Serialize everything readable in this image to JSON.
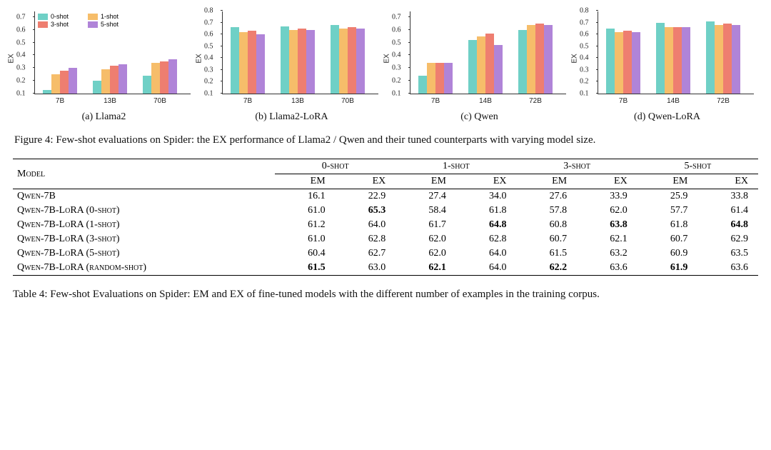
{
  "colors": {
    "shot0": "#6fd0c6",
    "shot1": "#f6bd6a",
    "shot3": "#ee7e70",
    "shot5": "#b084d8",
    "axis": "#333333",
    "bg": "#ffffff"
  },
  "legend": {
    "items": [
      {
        "label": "0-shot",
        "color_key": "shot0"
      },
      {
        "label": "1-shot",
        "color_key": "shot1"
      },
      {
        "label": "3-shot",
        "color_key": "shot3"
      },
      {
        "label": "5-shot",
        "color_key": "shot5"
      }
    ]
  },
  "charts": [
    {
      "id": "a",
      "subcaption": "(a) Llama2",
      "ylabel": "EX",
      "ylim": [
        0.1,
        0.75
      ],
      "yticks": [
        0.1,
        0.2,
        0.3,
        0.4,
        0.5,
        0.6,
        0.7
      ],
      "categories": [
        "7B",
        "13B",
        "70B"
      ],
      "series": [
        {
          "color_key": "shot0",
          "values": [
            0.13,
            0.2,
            0.24
          ]
        },
        {
          "color_key": "shot1",
          "values": [
            0.25,
            0.29,
            0.34
          ]
        },
        {
          "color_key": "shot3",
          "values": [
            0.28,
            0.32,
            0.35
          ]
        },
        {
          "color_key": "shot5",
          "values": [
            0.3,
            0.33,
            0.37
          ]
        }
      ],
      "show_legend": true
    },
    {
      "id": "b",
      "subcaption": "(b) Llama2-LoRA",
      "ylabel": "EX",
      "ylim": [
        0.1,
        0.8
      ],
      "yticks": [
        0.1,
        0.2,
        0.3,
        0.4,
        0.5,
        0.6,
        0.7,
        0.8
      ],
      "categories": [
        "7B",
        "13B",
        "70B"
      ],
      "series": [
        {
          "color_key": "shot0",
          "values": [
            0.66,
            0.67,
            0.68
          ]
        },
        {
          "color_key": "shot1",
          "values": [
            0.62,
            0.64,
            0.65
          ]
        },
        {
          "color_key": "shot3",
          "values": [
            0.63,
            0.65,
            0.66
          ]
        },
        {
          "color_key": "shot5",
          "values": [
            0.6,
            0.64,
            0.65
          ]
        }
      ],
      "show_legend": false
    },
    {
      "id": "c",
      "subcaption": "(c) Qwen",
      "ylabel": "EX",
      "ylim": [
        0.1,
        0.75
      ],
      "yticks": [
        0.1,
        0.2,
        0.3,
        0.4,
        0.5,
        0.6,
        0.7
      ],
      "categories": [
        "7B",
        "14B",
        "72B"
      ],
      "series": [
        {
          "color_key": "shot0",
          "values": [
            0.24,
            0.52,
            0.6
          ]
        },
        {
          "color_key": "shot1",
          "values": [
            0.34,
            0.55,
            0.64
          ]
        },
        {
          "color_key": "shot3",
          "values": [
            0.34,
            0.57,
            0.65
          ]
        },
        {
          "color_key": "shot5",
          "values": [
            0.34,
            0.48,
            0.64
          ]
        }
      ],
      "show_legend": false
    },
    {
      "id": "d",
      "subcaption": "(d) Qwen-LoRA",
      "ylabel": "EX",
      "ylim": [
        0.1,
        0.8
      ],
      "yticks": [
        0.1,
        0.2,
        0.3,
        0.4,
        0.5,
        0.6,
        0.7,
        0.8
      ],
      "categories": [
        "7B",
        "14B",
        "72B"
      ],
      "series": [
        {
          "color_key": "shot0",
          "values": [
            0.65,
            0.7,
            0.71
          ]
        },
        {
          "color_key": "shot1",
          "values": [
            0.62,
            0.66,
            0.68
          ]
        },
        {
          "color_key": "shot3",
          "values": [
            0.63,
            0.66,
            0.69
          ]
        },
        {
          "color_key": "shot5",
          "values": [
            0.62,
            0.66,
            0.68
          ]
        }
      ],
      "show_legend": false
    }
  ],
  "fig_caption": "Figure 4: Few-shot evaluations on Spider: the EX performance of Llama2 / Qwen and their tuned counterparts with varying model size.",
  "table": {
    "header_model": "Model",
    "shot_groups": [
      "0-shot",
      "1-shot",
      "3-shot",
      "5-shot"
    ],
    "metrics": [
      "EM",
      "EX"
    ],
    "rows": [
      {
        "model": "Qwen-7B",
        "vals": [
          [
            "16.1",
            "22.9"
          ],
          [
            "27.4",
            "34.0"
          ],
          [
            "27.6",
            "33.9"
          ],
          [
            "25.9",
            "33.8"
          ]
        ],
        "bold": []
      },
      {
        "model": "Qwen-7B-LoRA (0-shot)",
        "vals": [
          [
            "61.0",
            "65.3"
          ],
          [
            "58.4",
            "61.8"
          ],
          [
            "57.8",
            "62.0"
          ],
          [
            "57.7",
            "61.4"
          ]
        ],
        "bold": [
          1
        ]
      },
      {
        "model": "Qwen-7B-LoRA (1-shot)",
        "vals": [
          [
            "61.2",
            "64.0"
          ],
          [
            "61.7",
            "64.8"
          ],
          [
            "60.8",
            "63.8"
          ],
          [
            "61.8",
            "64.8"
          ]
        ],
        "bold": [
          3,
          5,
          7
        ]
      },
      {
        "model": "Qwen-7B-LoRA (3-shot)",
        "vals": [
          [
            "61.0",
            "62.8"
          ],
          [
            "62.0",
            "62.8"
          ],
          [
            "60.7",
            "62.1"
          ],
          [
            "60.7",
            "62.9"
          ]
        ],
        "bold": []
      },
      {
        "model": "Qwen-7B-LoRA (5-shot)",
        "vals": [
          [
            "60.4",
            "62.7"
          ],
          [
            "62.0",
            "64.0"
          ],
          [
            "61.5",
            "63.2"
          ],
          [
            "60.9",
            "63.5"
          ]
        ],
        "bold": []
      },
      {
        "model": "Qwen-7B-LoRA (random-shot)",
        "vals": [
          [
            "61.5",
            "63.0"
          ],
          [
            "62.1",
            "64.0"
          ],
          [
            "62.2",
            "63.6"
          ],
          [
            "61.9",
            "63.6"
          ]
        ],
        "bold": [
          0,
          2,
          4,
          6
        ]
      }
    ]
  },
  "tab_caption": "Table 4: Few-shot Evaluations on Spider: EM and EX of fine-tuned models with the different number of examples in the training corpus."
}
